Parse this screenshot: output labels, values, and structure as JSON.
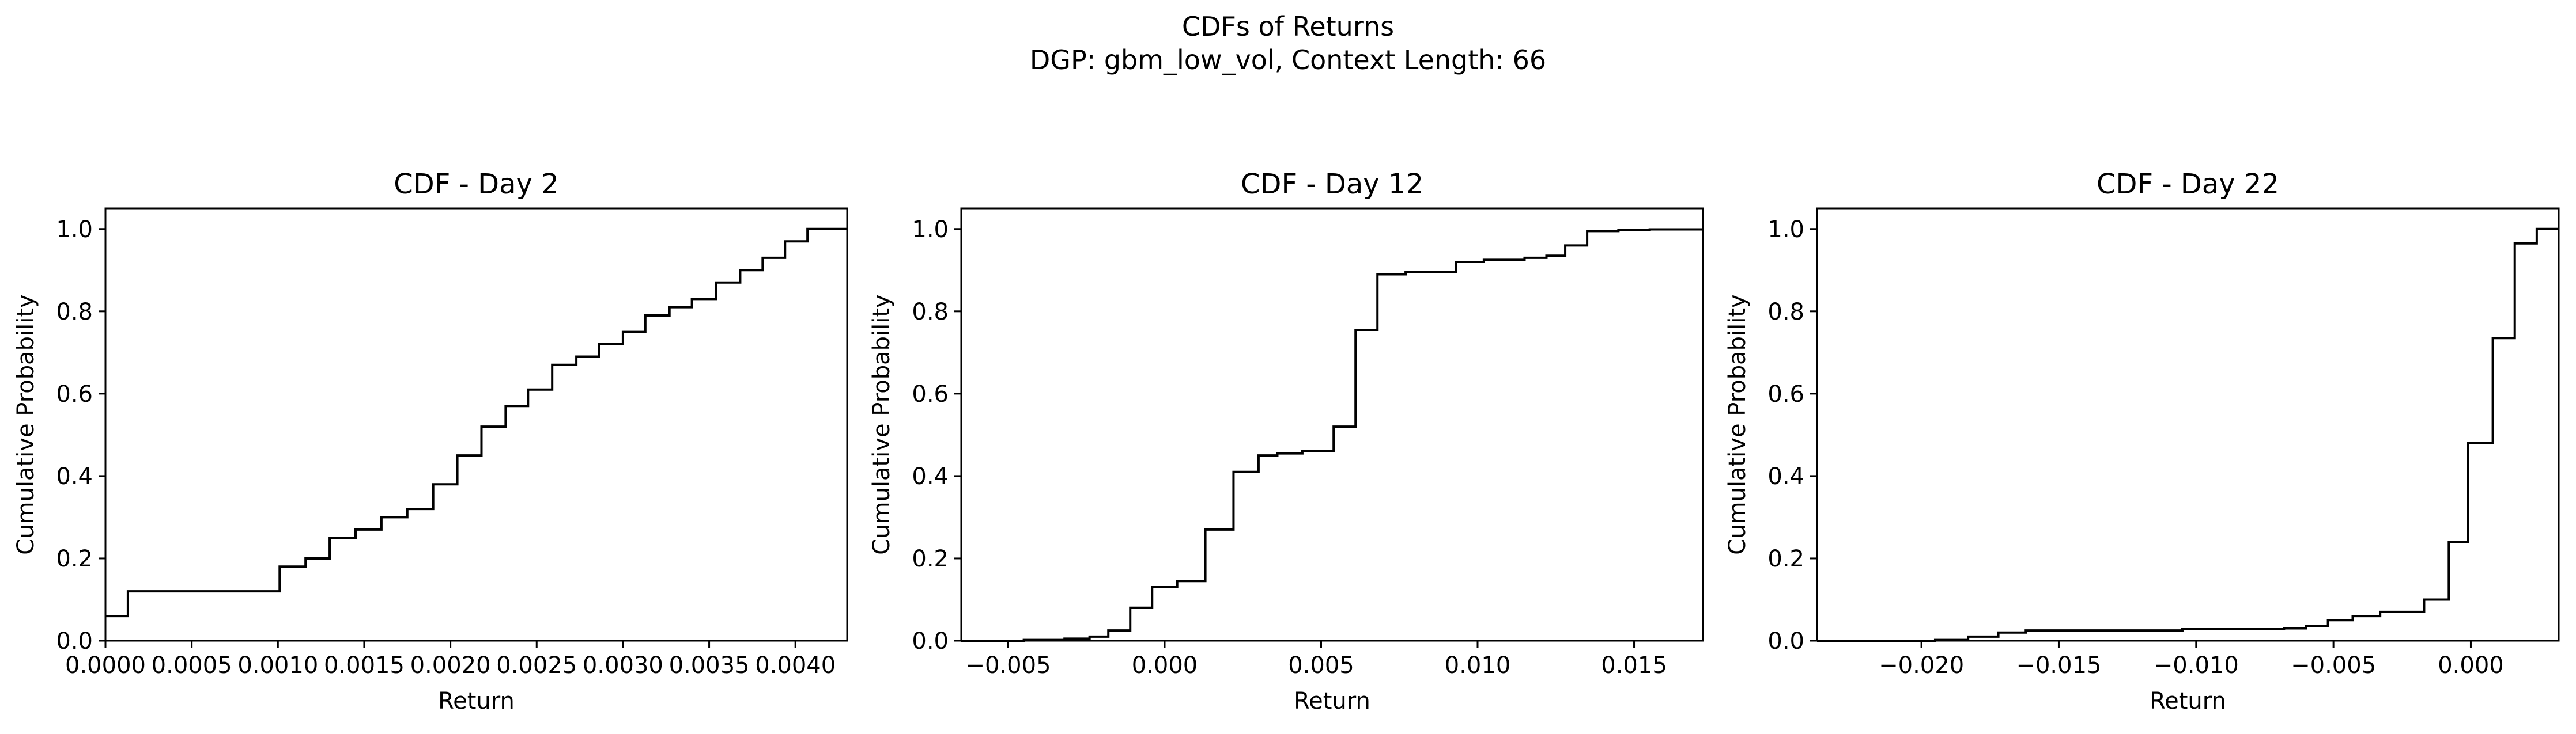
{
  "figure": {
    "suptitle_line1": "CDFs of Returns",
    "suptitle_line2": "DGP: gbm_low_vol, Context Length: 66"
  },
  "chart_data": [
    {
      "type": "line",
      "step": true,
      "title": "CDF - Day 2",
      "xlabel": "Return",
      "ylabel": "Cumulative Probability",
      "xlim": [
        0.0,
        0.0043
      ],
      "ylim": [
        0.0,
        1.05
      ],
      "xticks": [
        0.0,
        0.0005,
        0.001,
        0.0015,
        0.002,
        0.0025,
        0.003,
        0.0035,
        0.004
      ],
      "xtick_labels": [
        "0.0000",
        "0.0005",
        "0.0010",
        "0.0015",
        "0.0020",
        "0.0025",
        "0.0030",
        "0.0035",
        "0.0040"
      ],
      "yticks": [
        0.0,
        0.2,
        0.4,
        0.6,
        0.8,
        1.0
      ],
      "ytick_labels": [
        "0.0",
        "0.2",
        "0.4",
        "0.6",
        "0.8",
        "1.0"
      ],
      "color": "#000000",
      "grid": false,
      "x": [
        0.0,
        0.00013,
        0.00101,
        0.00116,
        0.0013,
        0.00145,
        0.0016,
        0.00175,
        0.0019,
        0.00204,
        0.00218,
        0.00232,
        0.00245,
        0.00259,
        0.00273,
        0.00286,
        0.003,
        0.00313,
        0.00327,
        0.0034,
        0.00354,
        0.00368,
        0.00381,
        0.00394,
        0.00407,
        0.00421,
        0.0043
      ],
      "y": [
        0.06,
        0.12,
        0.18,
        0.2,
        0.25,
        0.27,
        0.3,
        0.32,
        0.38,
        0.45,
        0.52,
        0.57,
        0.61,
        0.67,
        0.69,
        0.72,
        0.75,
        0.79,
        0.81,
        0.83,
        0.87,
        0.9,
        0.93,
        0.97,
        1.0,
        1.0,
        1.0
      ]
    },
    {
      "type": "line",
      "step": true,
      "title": "CDF - Day 12",
      "xlabel": "Return",
      "ylabel": "Cumulative Probability",
      "xlim": [
        -0.0065,
        0.0172
      ],
      "ylim": [
        0.0,
        1.05
      ],
      "xticks": [
        -0.005,
        0.0,
        0.005,
        0.01,
        0.015
      ],
      "xtick_labels": [
        "−0.005",
        "0.000",
        "0.005",
        "0.010",
        "0.015"
      ],
      "yticks": [
        0.0,
        0.2,
        0.4,
        0.6,
        0.8,
        1.0
      ],
      "ytick_labels": [
        "0.0",
        "0.2",
        "0.4",
        "0.6",
        "0.8",
        "1.0"
      ],
      "color": "#000000",
      "grid": false,
      "x": [
        -0.0065,
        -0.0045,
        -0.0032,
        -0.0024,
        -0.0018,
        -0.0011,
        -0.0004,
        0.0004,
        0.0013,
        0.0022,
        0.003,
        0.0036,
        0.0044,
        0.0054,
        0.0061,
        0.0068,
        0.0077,
        0.0093,
        0.0102,
        0.0115,
        0.0122,
        0.0128,
        0.0135,
        0.0145,
        0.0155,
        0.0172
      ],
      "y": [
        0.0,
        0.002,
        0.005,
        0.01,
        0.025,
        0.08,
        0.13,
        0.145,
        0.27,
        0.41,
        0.45,
        0.455,
        0.46,
        0.52,
        0.755,
        0.89,
        0.895,
        0.92,
        0.925,
        0.93,
        0.935,
        0.96,
        0.995,
        0.997,
        0.999,
        1.0
      ]
    },
    {
      "type": "line",
      "step": true,
      "title": "CDF - Day 22",
      "xlabel": "Return",
      "ylabel": "Cumulative Probability",
      "xlim": [
        -0.0238,
        0.0032
      ],
      "ylim": [
        0.0,
        1.05
      ],
      "xticks": [
        -0.02,
        -0.015,
        -0.01,
        -0.005,
        0.0
      ],
      "xtick_labels": [
        "−0.020",
        "−0.015",
        "−0.010",
        "−0.005",
        "0.000"
      ],
      "yticks": [
        0.0,
        0.2,
        0.4,
        0.6,
        0.8,
        1.0
      ],
      "ytick_labels": [
        "0.0",
        "0.2",
        "0.4",
        "0.6",
        "0.8",
        "1.0"
      ],
      "color": "#000000",
      "grid": false,
      "x": [
        -0.0238,
        -0.0195,
        -0.0183,
        -0.0172,
        -0.0162,
        -0.0105,
        -0.0068,
        -0.006,
        -0.0052,
        -0.0043,
        -0.0033,
        -0.0017,
        -0.0008,
        -0.0001,
        0.0008,
        0.0016,
        0.0024,
        0.0032
      ],
      "y": [
        0.0,
        0.002,
        0.01,
        0.02,
        0.025,
        0.028,
        0.03,
        0.035,
        0.05,
        0.06,
        0.07,
        0.1,
        0.24,
        0.48,
        0.735,
        0.965,
        1.0,
        1.0
      ]
    }
  ]
}
